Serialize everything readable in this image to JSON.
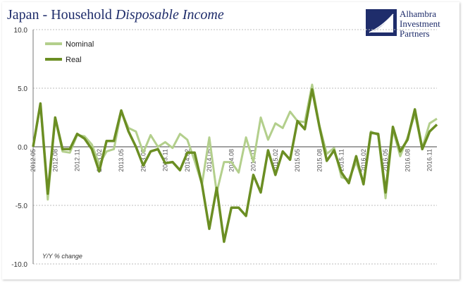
{
  "header": {
    "title_plain": "Japan - Household",
    "title_italic": "Disposable Income"
  },
  "logo": {
    "line1": "Alhambra",
    "line2": "Investment",
    "line3": "Partners",
    "color": "#1f2d6b"
  },
  "chart_data": {
    "type": "line",
    "title": "Japan - Household Disposable Income",
    "ylabel": "Y/Y % change",
    "ylim": [
      -10,
      10
    ],
    "yticks": [
      "10.0",
      "5.0",
      "0.0",
      "-5.0",
      "-10.0"
    ],
    "ytick_values": [
      10,
      5,
      0,
      -5,
      -10
    ],
    "grid": true,
    "legend_position": "top-left",
    "x": [
      "2012.05",
      "2012.06",
      "2012.07",
      "2012.08",
      "2012.09",
      "2012.10",
      "2012.11",
      "2012.12",
      "2013.01",
      "2013.02",
      "2013.03",
      "2013.04",
      "2013.05",
      "2013.06",
      "2013.07",
      "2013.08",
      "2013.09",
      "2013.10",
      "2013.11",
      "2013.12",
      "2014.01",
      "2014.02",
      "2014.03",
      "2014.04",
      "2014.05",
      "2014.06",
      "2014.07",
      "2014.08",
      "2014.09",
      "2014.10",
      "2014.11",
      "2014.12",
      "2015.01",
      "2015.02",
      "2015.03",
      "2015.04",
      "2015.05",
      "2015.06",
      "2015.07",
      "2015.08",
      "2015.09",
      "2015.10",
      "2015.11",
      "2015.12",
      "2016.01",
      "2016.02",
      "2016.03",
      "2016.04",
      "2016.05",
      "2016.06",
      "2016.07",
      "2016.08",
      "2016.09",
      "2016.10",
      "2016.11",
      "2016.12"
    ],
    "xticks": [
      "2012.05",
      "2012.08",
      "2012.11",
      "2013.02",
      "2013.05",
      "2013.08",
      "2013.11",
      "2014.02",
      "2014.05",
      "2014.08",
      "2014.11",
      "2015.02",
      "2015.05",
      "2015.08",
      "2015.11",
      "2016.02",
      "2016.05",
      "2016.08",
      "2016.11"
    ],
    "series": [
      {
        "name": "Nominal",
        "color": "#b3cf8c",
        "values": [
          0.0,
          3.6,
          -4.5,
          2.4,
          -0.4,
          -0.5,
          1.0,
          0.9,
          0.2,
          -1.5,
          -0.4,
          -0.2,
          3.0,
          1.6,
          1.3,
          -0.5,
          1.0,
          0.0,
          0.4,
          -0.1,
          1.1,
          0.6,
          -1.2,
          -3.2,
          0.8,
          -3.9,
          -1.3,
          -1.3,
          -2.2,
          0.8,
          -1.3,
          2.5,
          0.6,
          2.0,
          1.6,
          3.0,
          2.2,
          2.1,
          5.3,
          1.8,
          -0.6,
          -0.1,
          -2.6,
          -2.8,
          -1.3,
          -3.1,
          1.3,
          1.0,
          -4.4,
          1.5,
          -0.8,
          0.8,
          2.8,
          -0.1,
          2.0,
          2.4
        ]
      },
      {
        "name": "Real",
        "color": "#6b8e23",
        "values": [
          0.0,
          3.7,
          -4.0,
          2.5,
          -0.2,
          -0.2,
          1.1,
          0.7,
          -0.2,
          -2.1,
          0.5,
          0.5,
          3.1,
          1.3,
          0.0,
          -1.6,
          -0.4,
          -0.2,
          -1.4,
          -1.3,
          -2.0,
          -0.5,
          -0.5,
          -3.2,
          -7.0,
          -3.5,
          -8.1,
          -5.2,
          -5.2,
          -5.9,
          -2.4,
          -3.9,
          -0.3,
          -2.4,
          -0.4,
          -1.1,
          2.2,
          1.5,
          4.9,
          1.7,
          -1.2,
          -0.3,
          -2.2,
          -3.1,
          -0.8,
          -3.2,
          1.2,
          1.1,
          -3.9,
          1.7,
          -0.4,
          0.6,
          3.2,
          -0.2,
          1.3,
          1.9
        ]
      }
    ]
  }
}
